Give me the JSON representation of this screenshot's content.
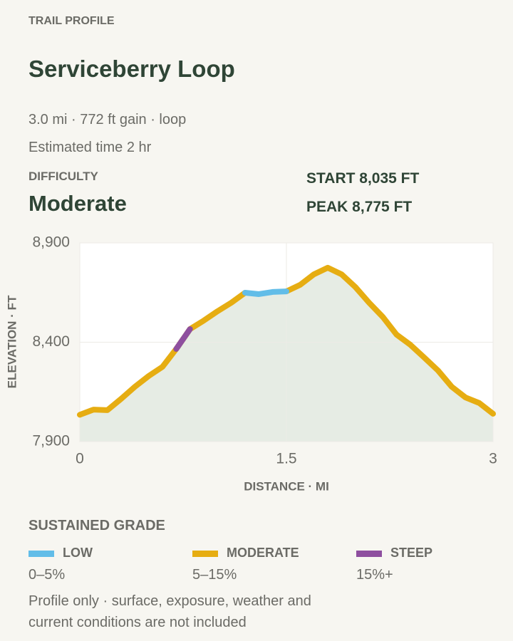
{
  "header": {
    "eyebrow": "TRAIL PROFILE",
    "title": "Serviceberry Loop",
    "summary": "3.0 mi · 772 ft gain · loop",
    "time": "Estimated time 2 hr",
    "difficulty_label": "DIFFICULTY",
    "difficulty": "Moderate",
    "start": "START 8,035 FT",
    "peak": "PEAK 8,775 FT"
  },
  "chart_data": {
    "type": "line",
    "x": [
      0,
      0.1,
      0.2,
      0.3,
      0.4,
      0.5,
      0.6,
      0.7,
      0.8,
      0.9,
      1.0,
      1.1,
      1.2,
      1.3,
      1.4,
      1.5,
      1.6,
      1.7,
      1.8,
      1.9,
      2.0,
      2.1,
      2.2,
      2.3,
      2.4,
      2.5,
      2.6,
      2.7,
      2.8,
      2.9,
      3.0
    ],
    "series": [
      {
        "name": "MODERATE",
        "range": "5–15%",
        "color": "#e6ad12",
        "values": [
          8035,
          8061,
          8058,
          8115,
          8176,
          8230,
          8276,
          8366,
          8466,
          8509,
          8556,
          8599,
          8649,
          null,
          null,
          8656,
          8689,
          8742,
          8775,
          8742,
          8678,
          8599,
          8527,
          8438,
          8387,
          8323,
          8258,
          8176,
          8122,
          8094,
          8040
        ]
      },
      {
        "name": "LOW",
        "range": "0–5%",
        "color": "#62bde8",
        "values": [
          null,
          null,
          null,
          null,
          null,
          null,
          null,
          null,
          null,
          null,
          null,
          null,
          8649,
          8642,
          8653,
          8656,
          null,
          null,
          null,
          null,
          null,
          null,
          null,
          null,
          null,
          null,
          null,
          null,
          null,
          null,
          null
        ]
      },
      {
        "name": "STEEP",
        "range": "15%+",
        "color": "#8e4f9f",
        "values": [
          null,
          null,
          null,
          null,
          null,
          null,
          null,
          8366,
          8466,
          null,
          null,
          null,
          null,
          null,
          null,
          null,
          null,
          null,
          null,
          null,
          null,
          null,
          null,
          null,
          null,
          null,
          null,
          null,
          null,
          null,
          null
        ]
      }
    ],
    "legend_order": [
      1,
      0,
      2
    ],
    "legend_title": "SUSTAINED GRADE",
    "xlabel": "DISTANCE · MI",
    "ylabel": "ELEVATION · FT",
    "xlim": [
      0,
      3
    ],
    "xticks": [
      0,
      1.5,
      3
    ],
    "ylim": [
      7900,
      8900
    ],
    "yticks": [
      {
        "value": 7900,
        "label": "7,900"
      },
      {
        "value": 8400,
        "label": "8,400"
      },
      {
        "value": 8900,
        "label": "8,900"
      }
    ],
    "grid": true,
    "area_color": "#e6ece4"
  },
  "footnote": [
    "Profile only · surface, exposure, weather and",
    "current conditions are not included"
  ]
}
